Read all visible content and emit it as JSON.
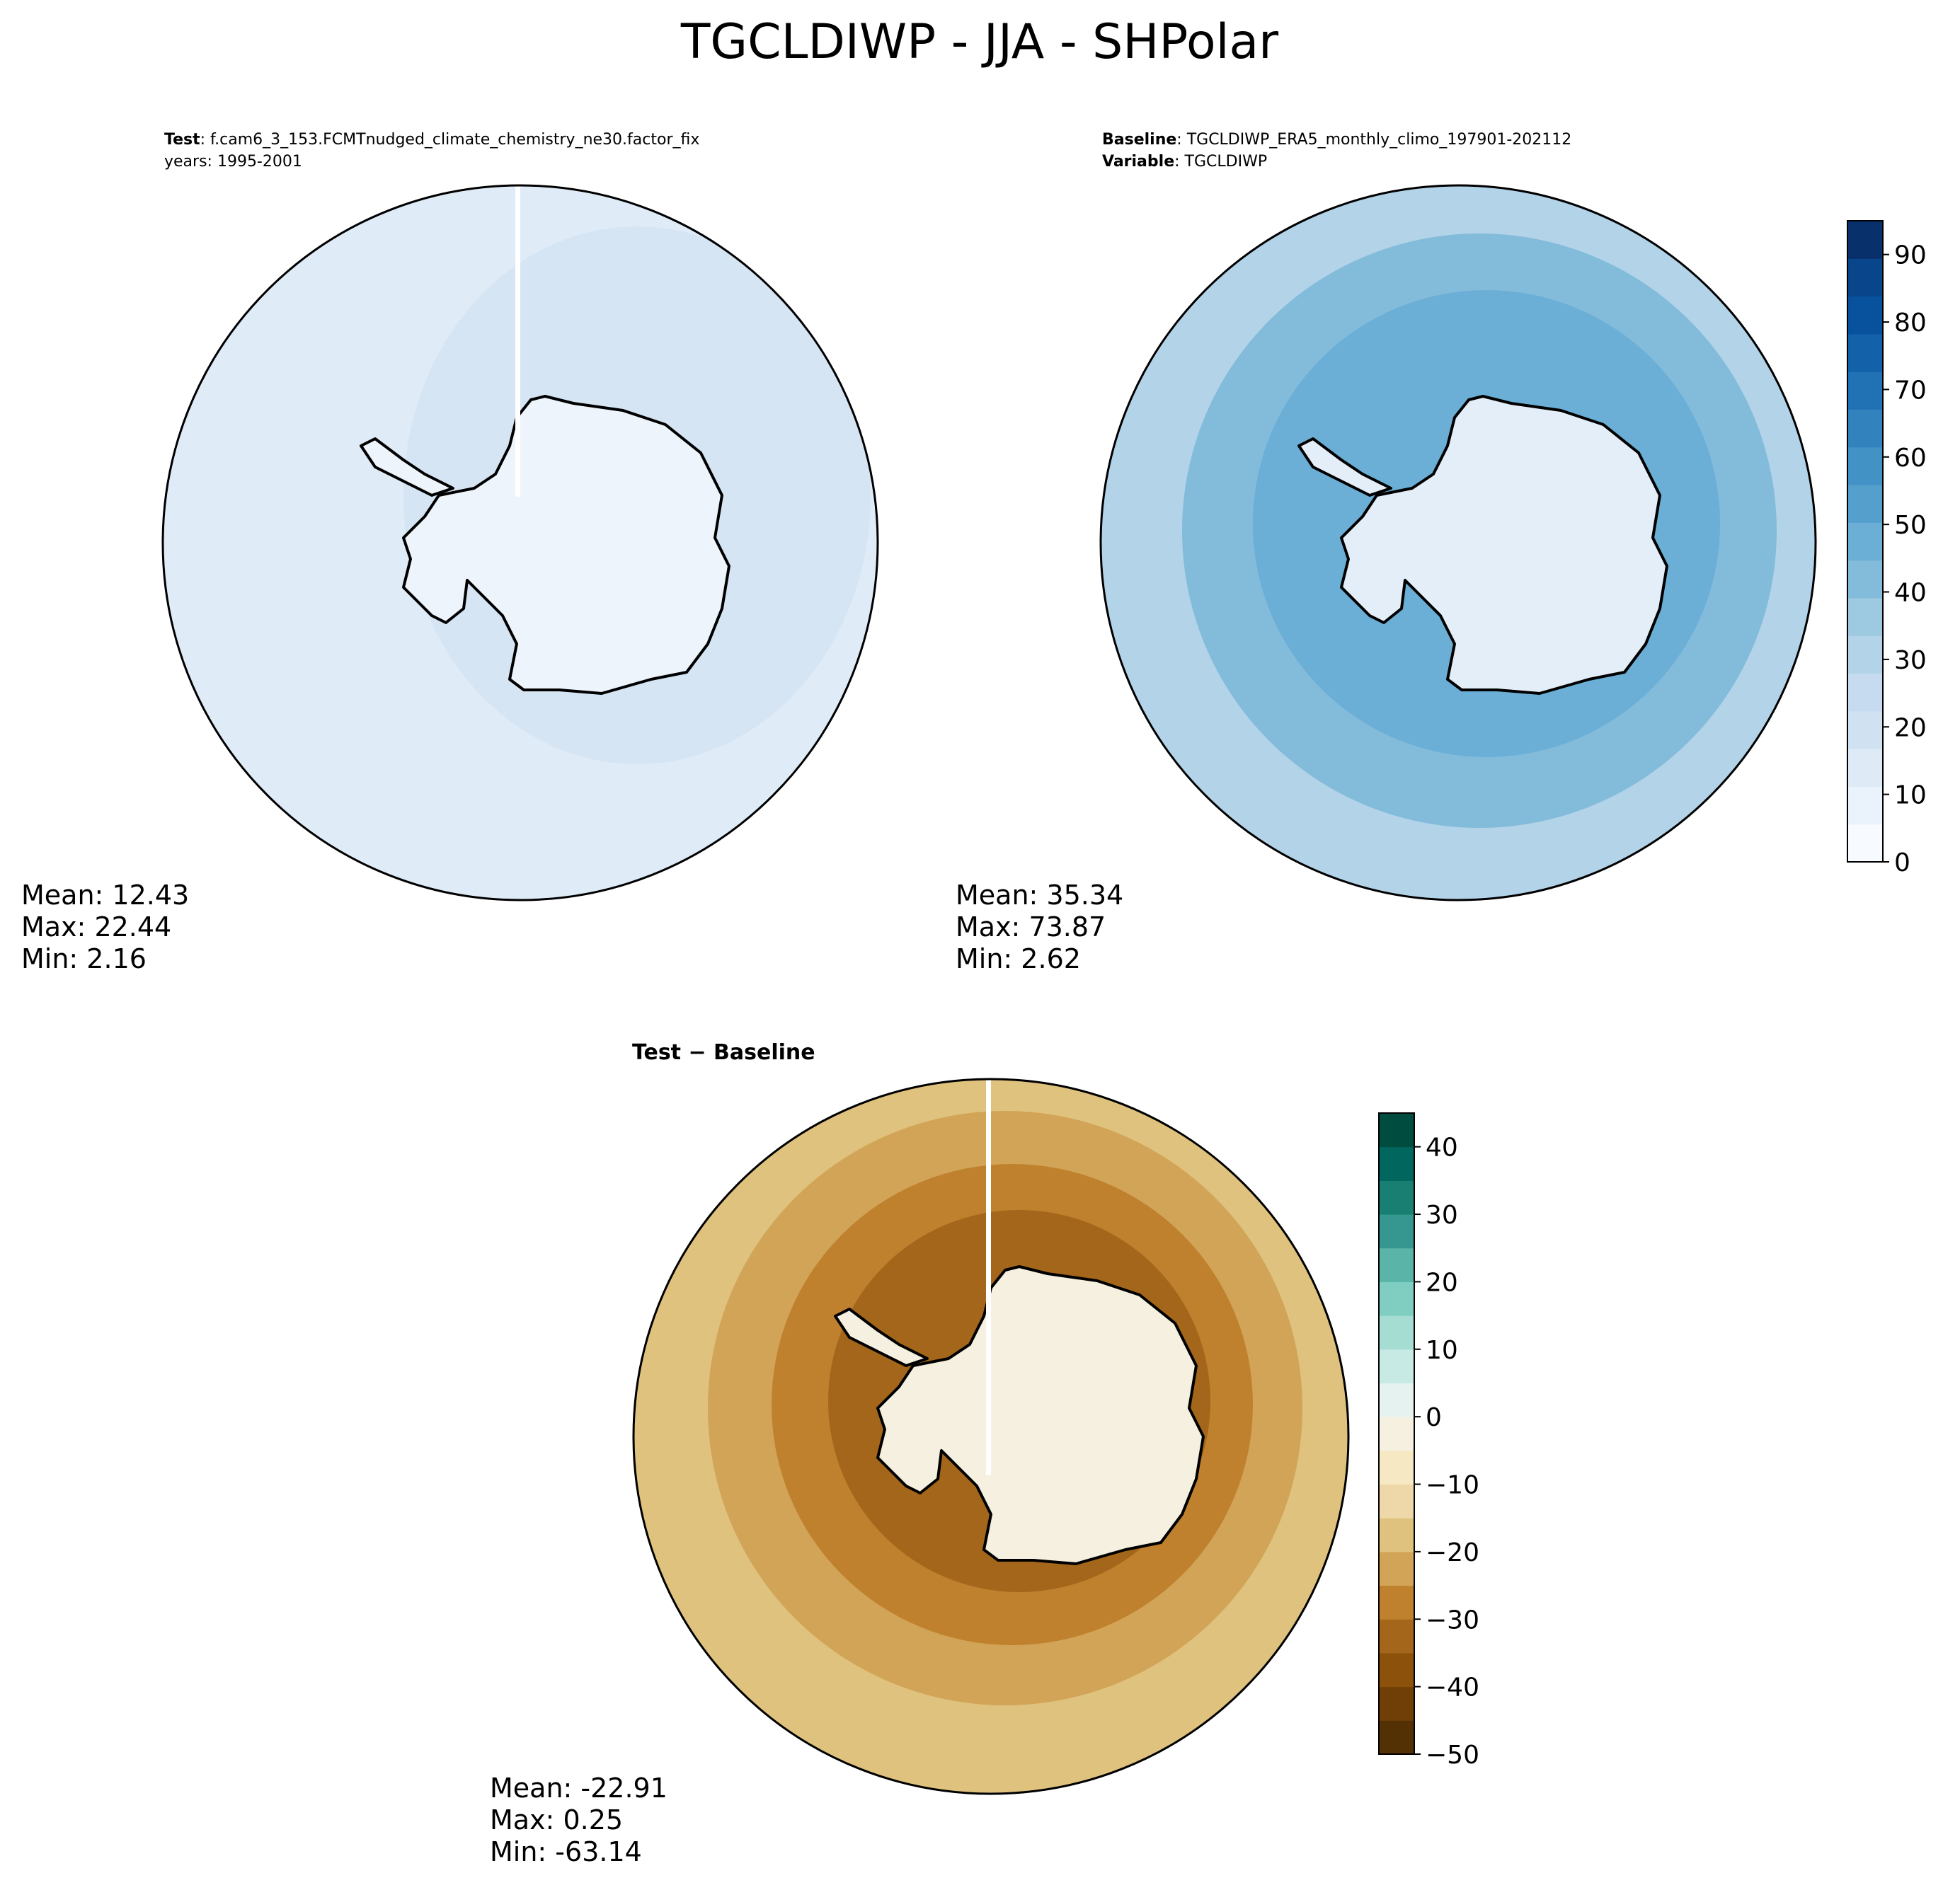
{
  "title": "TGCLDIWP - JJA - SHPolar",
  "panels": {
    "test": {
      "header_bold": "Test",
      "header_text": ": f.cam6_3_153.FCMTnudged_climate_chemistry_ne30.factor_fix",
      "header_line2": "years: 1995-2001",
      "stats": {
        "mean": "Mean: 12.43",
        "max": "Max: 22.44",
        "min": "Min:  2.16"
      }
    },
    "baseline": {
      "header_bold": "Baseline",
      "header_text": ": TGCLDIWP_ERA5_monthly_climo_197901-202112",
      "header_bold2": "Variable",
      "header_text2": ": TGCLDIWP",
      "stats": {
        "mean": "Mean: 35.34",
        "max": "Max: 73.87",
        "min": "Min:  2.62"
      }
    },
    "diff": {
      "header": "Test − Baseline",
      "stats": {
        "mean": "Mean: -22.91",
        "max": "Max:  0.25",
        "min": "Min: -63.14"
      }
    }
  },
  "colorbars": {
    "blues": {
      "ticks": [
        "0",
        "10",
        "20",
        "30",
        "40",
        "50",
        "60",
        "70",
        "80",
        "90"
      ],
      "range": [
        0,
        95
      ],
      "colors": [
        "#f7fbff",
        "#eaf3fb",
        "#deebf7",
        "#d0e2f2",
        "#c6dbef",
        "#b3d3e8",
        "#9ecae1",
        "#83bbdb",
        "#6baed6",
        "#559fcd",
        "#4292c6",
        "#3282be",
        "#2171b5",
        "#1361a8",
        "#08519c",
        "#08458a",
        "#08306b"
      ]
    },
    "brbg": {
      "ticks": [
        "40",
        "30",
        "20",
        "10",
        "0",
        "−10",
        "−20",
        "−30",
        "−40",
        "−50"
      ],
      "range": [
        -50,
        45
      ],
      "colors": [
        "#543005",
        "#6f3f07",
        "#8c510a",
        "#a3661a",
        "#bf812d",
        "#d2a457",
        "#dfc27d",
        "#eed8a9",
        "#f6e8c3",
        "#f5f0e0",
        "#e6f2f0",
        "#c7eae5",
        "#a5ddd3",
        "#80cdc1",
        "#5ab4a8",
        "#35978f",
        "#1a7f73",
        "#01665e",
        "#004d40"
      ]
    }
  },
  "map_colors": {
    "test_ocean": "#dfebf7",
    "test_land": "#edf4fb",
    "base_ocean": "#9ecae1",
    "base_land": "#e4eef8",
    "diff_ocean": "#dfc27d",
    "diff_ring": "#bf812d",
    "diff_land": "#f5f0e0"
  }
}
